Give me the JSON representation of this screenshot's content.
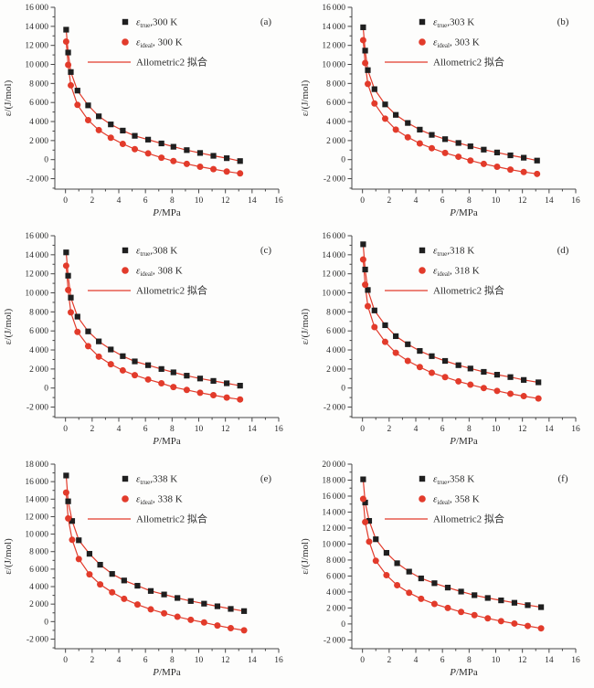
{
  "figure": {
    "background": "#fdfdfc",
    "colors": {
      "fit_red": "#e23b2b",
      "marker_black": "#1f1f1f",
      "marker_red": "#e23b2b",
      "axis": "#474747",
      "text": "#2b2b2b"
    },
    "xlabel_italic": "P",
    "xlabel_rest": "/MPa",
    "ylabel": "ε/(J/mol)",
    "fit_label": "Allometric2 拟合",
    "legend_symbol_base": "ε",
    "xlim": [
      -0.8,
      16
    ],
    "x_major_ticks": [
      0,
      2,
      4,
      6,
      8,
      10,
      12,
      14,
      16
    ],
    "x_minor_ticks": [
      1,
      3,
      5,
      7,
      9,
      11,
      13,
      15
    ],
    "grid": false,
    "legend_position": "top-inside"
  },
  "chart_data": [
    {
      "type": "scatter+line",
      "panel": "(a)",
      "temperature": "300 K",
      "xlabel": "P/MPa",
      "ylabel": "ε/(J/mol)",
      "xlim": [
        -0.8,
        16
      ],
      "ylim": [
        -3100,
        16000
      ],
      "y_tick_step": 2000,
      "y_tick_min": -2000,
      "y_tick_max": 16000,
      "x": [
        0.05,
        0.2,
        0.4,
        0.9,
        1.7,
        2.5,
        3.4,
        4.3,
        5.2,
        6.2,
        7.2,
        8.1,
        9.1,
        10.1,
        11.1,
        12.1,
        13.1
      ],
      "series": [
        {
          "name": "ε_true, 300 K",
          "sub": "true",
          "label_suffix": ",300 K",
          "marker": "square",
          "color": "black",
          "values": [
            13650,
            11250,
            9200,
            7250,
            5700,
            4550,
            3700,
            3050,
            2500,
            2100,
            1700,
            1350,
            1000,
            700,
            400,
            150,
            -150
          ]
        },
        {
          "name": "ε_ideal, 300 K",
          "sub": "ideal",
          "label_suffix": ", 300 K",
          "marker": "circle",
          "color": "red",
          "values": [
            12400,
            9950,
            7800,
            5750,
            4150,
            3100,
            2300,
            1650,
            1100,
            650,
            200,
            -150,
            -450,
            -750,
            -1000,
            -1250,
            -1450
          ]
        }
      ],
      "fit": "Allometric2 fit line drawn through both series"
    },
    {
      "type": "scatter+line",
      "panel": "(b)",
      "temperature": "303 K",
      "xlabel": "P/MPa",
      "ylabel": "ε/(J/mol)",
      "xlim": [
        -0.8,
        16
      ],
      "ylim": [
        -3100,
        16000
      ],
      "y_tick_step": 2000,
      "y_tick_min": -2000,
      "y_tick_max": 16000,
      "x": [
        0.05,
        0.2,
        0.4,
        0.9,
        1.7,
        2.5,
        3.4,
        4.3,
        5.2,
        6.2,
        7.2,
        8.1,
        9.1,
        10.1,
        11.1,
        12.1,
        13.1
      ],
      "series": [
        {
          "name": "ε_true, 303 K",
          "sub": "true",
          "label_suffix": ",303 K",
          "marker": "square",
          "color": "black",
          "values": [
            13900,
            11450,
            9400,
            7400,
            5800,
            4700,
            3850,
            3150,
            2600,
            2150,
            1750,
            1400,
            1050,
            750,
            450,
            200,
            -100
          ]
        },
        {
          "name": "ε_ideal, 303 K",
          "sub": "ideal",
          "label_suffix": ", 303 K",
          "marker": "circle",
          "color": "red",
          "values": [
            12550,
            10150,
            7950,
            5900,
            4300,
            3150,
            2350,
            1700,
            1200,
            700,
            300,
            -100,
            -450,
            -750,
            -1050,
            -1300,
            -1500
          ]
        }
      ],
      "fit": "Allometric2 fit line drawn through both series"
    },
    {
      "type": "scatter+line",
      "panel": "(c)",
      "temperature": "308 K",
      "xlabel": "P/MPa",
      "ylabel": "ε/(J/mol)",
      "xlim": [
        -0.8,
        16
      ],
      "ylim": [
        -3100,
        16000
      ],
      "y_tick_step": 2000,
      "y_tick_min": -2000,
      "y_tick_max": 16000,
      "x": [
        0.05,
        0.2,
        0.4,
        0.9,
        1.7,
        2.5,
        3.4,
        4.3,
        5.2,
        6.2,
        7.2,
        8.1,
        9.1,
        10.1,
        11.1,
        12.1,
        13.1
      ],
      "series": [
        {
          "name": "ε_true, 308 K",
          "sub": "true",
          "label_suffix": ",308 K",
          "marker": "square",
          "color": "black",
          "values": [
            14250,
            11800,
            9500,
            7500,
            5950,
            4900,
            4050,
            3350,
            2800,
            2400,
            2000,
            1650,
            1300,
            1000,
            750,
            500,
            250
          ]
        },
        {
          "name": "ε_ideal, 308 K",
          "sub": "ideal",
          "label_suffix": ", 308 K",
          "marker": "circle",
          "color": "red",
          "values": [
            12850,
            10300,
            7950,
            5900,
            4400,
            3300,
            2500,
            1850,
            1350,
            900,
            500,
            100,
            -200,
            -500,
            -750,
            -1000,
            -1200
          ]
        }
      ],
      "fit": "Allometric2 fit line drawn through both series"
    },
    {
      "type": "scatter+line",
      "panel": "(d)",
      "temperature": "318 K",
      "xlabel": "P/MPa",
      "ylabel": "ε/(J/mol)",
      "xlim": [
        -0.8,
        16
      ],
      "ylim": [
        -3100,
        16000
      ],
      "y_tick_step": 2000,
      "y_tick_min": -2000,
      "y_tick_max": 16000,
      "x": [
        0.05,
        0.2,
        0.4,
        0.9,
        1.7,
        2.5,
        3.4,
        4.3,
        5.2,
        6.2,
        7.2,
        8.1,
        9.1,
        10.1,
        11.1,
        12.1,
        13.2
      ],
      "series": [
        {
          "name": "ε_true, 318 K",
          "sub": "true",
          "label_suffix": ",318 K",
          "marker": "square",
          "color": "black",
          "values": [
            15100,
            12450,
            10300,
            8150,
            6600,
            5450,
            4600,
            3900,
            3350,
            2850,
            2400,
            2050,
            1700,
            1400,
            1150,
            850,
            600
          ]
        },
        {
          "name": "ε_ideal, 318 K",
          "sub": "ideal",
          "label_suffix": ", 318 K",
          "marker": "circle",
          "color": "red",
          "values": [
            13500,
            10850,
            8600,
            6400,
            4850,
            3700,
            2850,
            2200,
            1600,
            1150,
            700,
            350,
            0,
            -300,
            -600,
            -850,
            -1100
          ]
        }
      ],
      "fit": "Allometric2 fit line drawn through both series"
    },
    {
      "type": "scatter+line",
      "panel": "(e)",
      "temperature": "338 K",
      "xlabel": "P/MPa",
      "ylabel": "ε/(J/mol)",
      "xlim": [
        -0.8,
        16
      ],
      "ylim": [
        -3100,
        18000
      ],
      "y_tick_step": 2000,
      "y_tick_min": -2000,
      "y_tick_max": 18000,
      "x": [
        0.05,
        0.2,
        0.5,
        1.0,
        1.8,
        2.6,
        3.5,
        4.4,
        5.4,
        6.4,
        7.4,
        8.4,
        9.4,
        10.4,
        11.4,
        12.4,
        13.4
      ],
      "series": [
        {
          "name": "ε_true, 338 K",
          "sub": "true",
          "label_suffix": ",338 K",
          "marker": "square",
          "color": "black",
          "values": [
            16700,
            13750,
            11500,
            9300,
            7750,
            6500,
            5450,
            4700,
            4100,
            3500,
            3100,
            2700,
            2350,
            2050,
            1750,
            1450,
            1200
          ]
        },
        {
          "name": "ε_ideal, 338 K",
          "sub": "ideal",
          "label_suffix": ", 338 K",
          "marker": "circle",
          "color": "red",
          "values": [
            14750,
            11800,
            9350,
            7150,
            5400,
            4250,
            3350,
            2600,
            1950,
            1400,
            950,
            550,
            200,
            -100,
            -450,
            -750,
            -1000
          ]
        }
      ],
      "fit": "Allometric2 fit line drawn through both series"
    },
    {
      "type": "scatter+line",
      "panel": "(f)",
      "temperature": "358 K",
      "xlabel": "P/MPa",
      "ylabel": "ε/(J/mol)",
      "xlim": [
        -0.8,
        16
      ],
      "ylim": [
        -3100,
        20000
      ],
      "y_tick_step": 2000,
      "y_tick_min": -2000,
      "y_tick_max": 20000,
      "x": [
        0.05,
        0.2,
        0.5,
        1.0,
        1.8,
        2.6,
        3.5,
        4.4,
        5.4,
        6.4,
        7.4,
        8.4,
        9.4,
        10.4,
        11.4,
        12.4,
        13.4
      ],
      "series": [
        {
          "name": "ε_true, 358 K",
          "sub": "true",
          "label_suffix": ",358 K",
          "marker": "square",
          "color": "black",
          "values": [
            18100,
            15200,
            12900,
            10600,
            8900,
            7600,
            6550,
            5700,
            5100,
            4550,
            4050,
            3600,
            3250,
            2950,
            2650,
            2350,
            2100
          ]
        },
        {
          "name": "ε_ideal, 358 K",
          "sub": "ideal",
          "label_suffix": ", 358 K",
          "marker": "circle",
          "color": "red",
          "values": [
            15650,
            12750,
            10300,
            7900,
            6100,
            4850,
            3900,
            3150,
            2500,
            2000,
            1500,
            1100,
            700,
            350,
            50,
            -250,
            -550
          ]
        }
      ],
      "fit": "Allometric2 fit line drawn through both series"
    }
  ]
}
